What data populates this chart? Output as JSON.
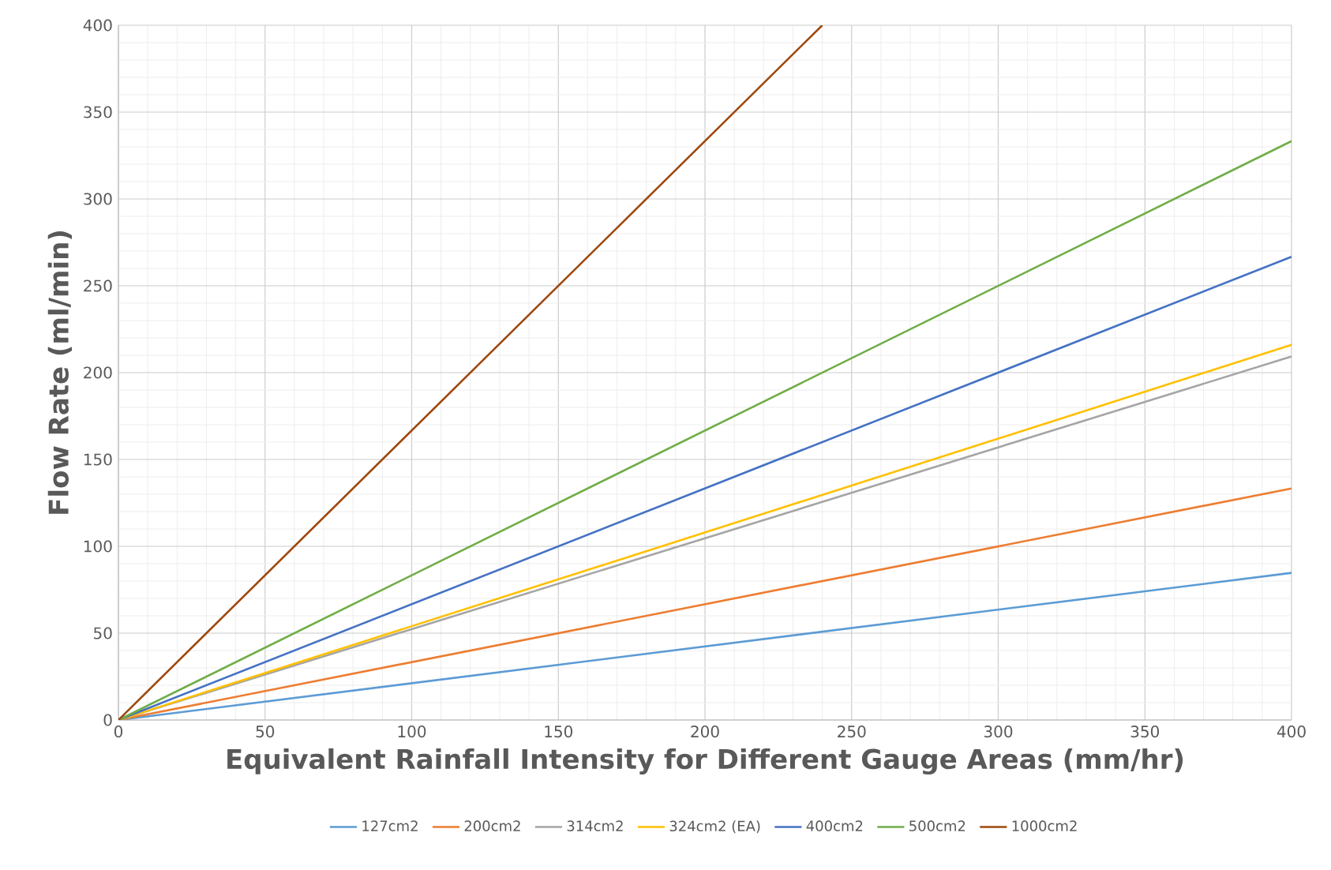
{
  "chart_data": {
    "type": "line",
    "xlabel": "Equivalent Rainfall Intensity for Different Gauge Areas (mm/hr)",
    "ylabel": "Flow Rate (ml/min)",
    "xlim": [
      0,
      400
    ],
    "ylim": [
      0,
      400
    ],
    "xticks": [
      0,
      50,
      100,
      150,
      200,
      250,
      300,
      350,
      400
    ],
    "yticks": [
      0,
      50,
      100,
      150,
      200,
      250,
      300,
      350,
      400
    ],
    "grid": true,
    "legend": "bottom",
    "line_style": "solid",
    "series": [
      {
        "name": "127cm2",
        "color": "#5b9bd5",
        "x": [
          0,
          400
        ],
        "values": [
          0,
          84.7
        ]
      },
      {
        "name": "200cm2",
        "color": "#ed7d31",
        "x": [
          0,
          400
        ],
        "values": [
          0,
          133.3
        ]
      },
      {
        "name": "314cm2",
        "color": "#a5a5a5",
        "x": [
          0,
          400
        ],
        "values": [
          0,
          209.3
        ]
      },
      {
        "name": "324cm2 (EA)",
        "color": "#ffc000",
        "x": [
          0,
          400
        ],
        "values": [
          0,
          216
        ]
      },
      {
        "name": "400cm2",
        "color": "#4472c4",
        "x": [
          0,
          400
        ],
        "values": [
          0,
          266.7
        ]
      },
      {
        "name": "500cm2",
        "color": "#70ad47",
        "x": [
          0,
          400
        ],
        "values": [
          0,
          333.3
        ]
      },
      {
        "name": "1000cm2",
        "color": "#9e480e",
        "x": [
          0,
          240
        ],
        "values": [
          0,
          400
        ]
      }
    ]
  }
}
